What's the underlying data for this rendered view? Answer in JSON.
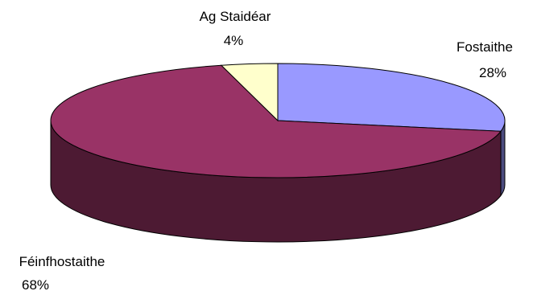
{
  "chart_data": {
    "type": "pie",
    "title": "",
    "three_d": true,
    "legend": "none",
    "categories": [
      "Fostaithe",
      "Féinfhostaithe",
      "Ag Staidéar"
    ],
    "values": [
      28,
      68,
      4
    ],
    "value_labels": [
      "28%",
      "68%",
      "4%"
    ],
    "colors": [
      "#9999ff",
      "#993366",
      "#ffffcc"
    ],
    "side_colors": [
      "#4c4c80",
      "#4d1a33",
      "#808066"
    ]
  }
}
